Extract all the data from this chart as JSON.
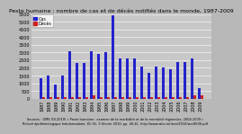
{
  "title": "Peste humaine : nombre de cas et de décès notifiés dans le monde, 1987-2009",
  "years": [
    1987,
    1988,
    1989,
    1990,
    1991,
    1992,
    1993,
    1994,
    1995,
    1996,
    1997,
    1998,
    1999,
    2000,
    2001,
    2002,
    2003,
    2004,
    2005,
    2006,
    2007,
    2008,
    2009
  ],
  "cases": [
    1300,
    1500,
    900,
    1500,
    3100,
    2300,
    2300,
    3100,
    2900,
    3000,
    5400,
    2600,
    2600,
    2600,
    2100,
    1700,
    2100,
    2000,
    1900,
    2400,
    2400,
    2600,
    700
  ],
  "deaths": [
    120,
    120,
    120,
    120,
    120,
    120,
    120,
    200,
    120,
    120,
    120,
    120,
    120,
    120,
    120,
    120,
    120,
    120,
    120,
    120,
    120,
    200,
    200
  ],
  "cases_color": "#2222cc",
  "deaths_color": "#cc2222",
  "bg_color": "#b8b8b8",
  "plot_bg_color": "#c8c8c8",
  "ylim": [
    0,
    5500
  ],
  "ytick_step": 500,
  "source_text": "Sources : OMS (DI-2010) « Peste humaine : examen de la morbidité et de la mortalité régionales, 2004-2009 »\nRelevé épidémiologique hebdomadaire, 81 (6), 5 février 2010, pp. 40-41. http://www.who.int/wer/2010/wer8506.pdf",
  "legend_cas": "Cas",
  "legend_deces": "Décès",
  "title_fontsize": 4.5,
  "tick_fontsize": 3.5,
  "source_fontsize": 2.5,
  "bar_width": 0.38,
  "bar_gap": 0.04
}
